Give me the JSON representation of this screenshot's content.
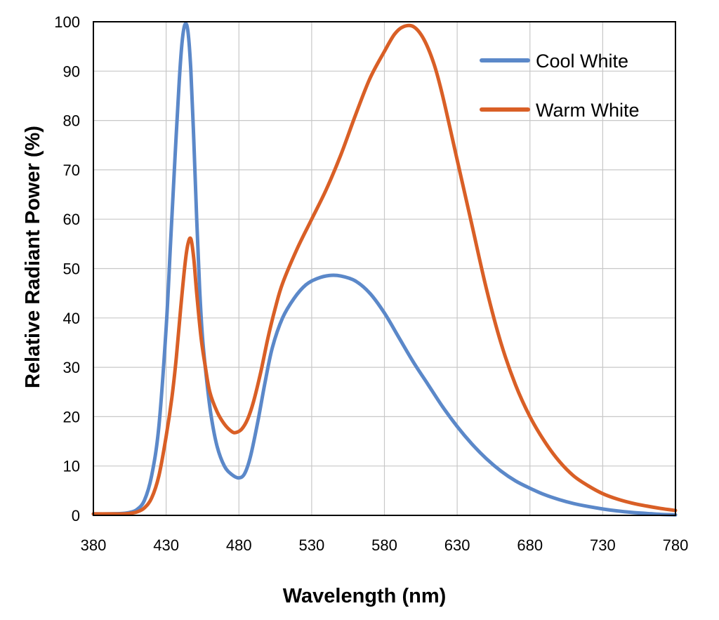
{
  "chart_data": {
    "type": "line",
    "title": "",
    "xlabel": "Wavelength (nm)",
    "ylabel": "Relative Radiant Power (%)",
    "xlim": [
      380,
      780
    ],
    "ylim": [
      0,
      100
    ],
    "xticks": [
      "380",
      "430",
      "480",
      "530",
      "580",
      "630",
      "680",
      "730",
      "780"
    ],
    "yticks": [
      "0",
      "10",
      "20",
      "30",
      "40",
      "50",
      "60",
      "70",
      "80",
      "90",
      "100"
    ],
    "grid": true,
    "legend_position": "top-right",
    "series": [
      {
        "name": "Cool White",
        "color": "#5b88c9",
        "points": [
          [
            380,
            0.3
          ],
          [
            390,
            0.3
          ],
          [
            400,
            0.4
          ],
          [
            405,
            0.6
          ],
          [
            410,
            1.2
          ],
          [
            415,
            3
          ],
          [
            420,
            8
          ],
          [
            425,
            18
          ],
          [
            430,
            38
          ],
          [
            433,
            55
          ],
          [
            436,
            72
          ],
          [
            439,
            88
          ],
          [
            441,
            96
          ],
          [
            443,
            99.5
          ],
          [
            445,
            98
          ],
          [
            447,
            90
          ],
          [
            449,
            76
          ],
          [
            451,
            60
          ],
          [
            453,
            46
          ],
          [
            455,
            36
          ],
          [
            458,
            27
          ],
          [
            461,
            20
          ],
          [
            465,
            14
          ],
          [
            470,
            10
          ],
          [
            475,
            8.3
          ],
          [
            480,
            7.6
          ],
          [
            484,
            8.5
          ],
          [
            488,
            12
          ],
          [
            493,
            19
          ],
          [
            498,
            27
          ],
          [
            503,
            34
          ],
          [
            510,
            40
          ],
          [
            518,
            44
          ],
          [
            526,
            46.7
          ],
          [
            534,
            48
          ],
          [
            542,
            48.6
          ],
          [
            550,
            48.5
          ],
          [
            560,
            47.5
          ],
          [
            570,
            45
          ],
          [
            580,
            41
          ],
          [
            590,
            36
          ],
          [
            600,
            31
          ],
          [
            610,
            26.5
          ],
          [
            620,
            22
          ],
          [
            630,
            18
          ],
          [
            640,
            14.5
          ],
          [
            650,
            11.5
          ],
          [
            660,
            9
          ],
          [
            670,
            7
          ],
          [
            680,
            5.5
          ],
          [
            690,
            4.2
          ],
          [
            700,
            3.2
          ],
          [
            710,
            2.4
          ],
          [
            720,
            1.8
          ],
          [
            730,
            1.3
          ],
          [
            740,
            0.9
          ],
          [
            750,
            0.6
          ],
          [
            760,
            0.4
          ],
          [
            770,
            0.2
          ],
          [
            780,
            0.1
          ]
        ]
      },
      {
        "name": "Warm White",
        "color": "#d95f26",
        "points": [
          [
            380,
            0.3
          ],
          [
            390,
            0.3
          ],
          [
            400,
            0.3
          ],
          [
            405,
            0.4
          ],
          [
            410,
            0.7
          ],
          [
            415,
            1.5
          ],
          [
            420,
            3.5
          ],
          [
            425,
            8
          ],
          [
            430,
            16
          ],
          [
            434,
            24
          ],
          [
            437,
            32
          ],
          [
            440,
            42
          ],
          [
            443,
            51
          ],
          [
            445,
            55
          ],
          [
            447,
            56
          ],
          [
            449,
            52
          ],
          [
            451,
            45
          ],
          [
            454,
            36
          ],
          [
            457,
            30
          ],
          [
            460,
            25
          ],
          [
            465,
            21
          ],
          [
            470,
            18.5
          ],
          [
            475,
            17
          ],
          [
            478,
            16.8
          ],
          [
            482,
            17.5
          ],
          [
            486,
            19.5
          ],
          [
            490,
            23
          ],
          [
            495,
            29
          ],
          [
            500,
            36
          ],
          [
            505,
            42
          ],
          [
            510,
            47
          ],
          [
            520,
            54
          ],
          [
            530,
            60
          ],
          [
            540,
            66
          ],
          [
            550,
            73
          ],
          [
            560,
            81
          ],
          [
            570,
            88.5
          ],
          [
            580,
            94
          ],
          [
            587,
            97.5
          ],
          [
            593,
            99
          ],
          [
            600,
            99
          ],
          [
            607,
            96.5
          ],
          [
            614,
            91.5
          ],
          [
            620,
            85
          ],
          [
            630,
            72
          ],
          [
            640,
            59
          ],
          [
            650,
            46
          ],
          [
            660,
            35
          ],
          [
            670,
            26.5
          ],
          [
            680,
            20
          ],
          [
            690,
            15
          ],
          [
            700,
            11
          ],
          [
            710,
            8
          ],
          [
            720,
            6
          ],
          [
            730,
            4.4
          ],
          [
            740,
            3.3
          ],
          [
            750,
            2.5
          ],
          [
            760,
            1.9
          ],
          [
            770,
            1.4
          ],
          [
            780,
            1
          ]
        ]
      }
    ]
  }
}
